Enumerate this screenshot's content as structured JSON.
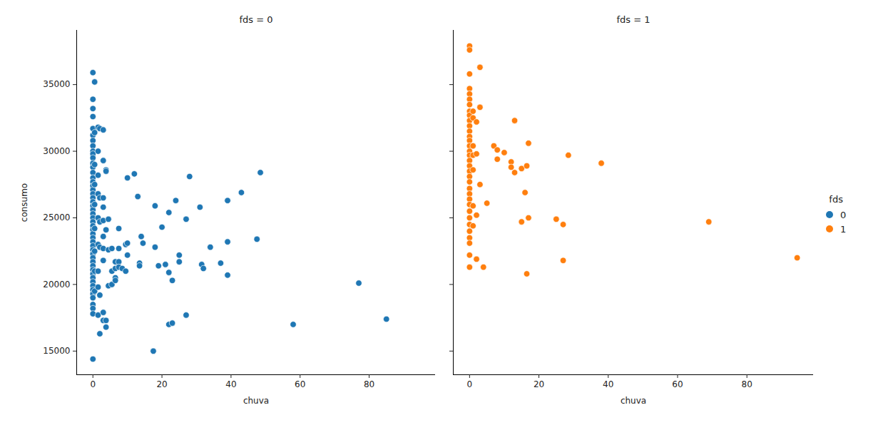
{
  "chart_data": [
    {
      "type": "scatter",
      "title": "fds = 0",
      "xlabel": "chuva",
      "ylabel": "consumo",
      "xlim": [
        -4.7,
        99.2
      ],
      "ylim": [
        13225,
        39075
      ],
      "xticks": [
        0,
        20,
        40,
        60,
        80
      ],
      "yticks": [
        15000,
        20000,
        25000,
        30000,
        35000
      ],
      "grid": false,
      "series": [
        {
          "name": "0",
          "color": "#1f77b4",
          "marker": "circle",
          "x": [
            0,
            0,
            0,
            0,
            0,
            0,
            0,
            0,
            0,
            0,
            0,
            0,
            0,
            0,
            0,
            0,
            0,
            0,
            0,
            0,
            0,
            0,
            0,
            0,
            0,
            0,
            0,
            0,
            0,
            0,
            0,
            0,
            0,
            0,
            0,
            0,
            0,
            0,
            0,
            0,
            0,
            0,
            0,
            0,
            0,
            0,
            0,
            0,
            0,
            0.5,
            0.5,
            0.5,
            0.5,
            0.5,
            0.5,
            0.5,
            0.5,
            0.5,
            1.5,
            1.5,
            1.5,
            1.5,
            1.5,
            1.5,
            1.5,
            1.5,
            1.5,
            2,
            2,
            2,
            2,
            2,
            2,
            3,
            3,
            3,
            3,
            3,
            3,
            3,
            3,
            3,
            3,
            3.8,
            3.8,
            3.8,
            3.8,
            3.8,
            4.5,
            4.5,
            4.5,
            5.5,
            5.5,
            5.5,
            6.5,
            6.5,
            6.5,
            6.5,
            7.5,
            7.5,
            7.5,
            7.5,
            8.5,
            9.5,
            9.5,
            10,
            10,
            10,
            12,
            13,
            13.5,
            13.5,
            14,
            14.5,
            17.5,
            18,
            18,
            19,
            20,
            21,
            22,
            22,
            22,
            23,
            23,
            24,
            25,
            25,
            27,
            27,
            28,
            31,
            31.5,
            32,
            34,
            37,
            39,
            39,
            39,
            43,
            47.5,
            48.5,
            58,
            77,
            85
          ],
          "values": [
            35900,
            33900,
            33200,
            32600,
            31700,
            31200,
            30800,
            30400,
            30000,
            29800,
            29500,
            29100,
            28800,
            28400,
            28000,
            27700,
            27400,
            27100,
            26800,
            26500,
            26200,
            25900,
            25600,
            25300,
            25000,
            24700,
            24400,
            24100,
            23800,
            23500,
            23200,
            22900,
            22600,
            22300,
            22000,
            21700,
            21400,
            21100,
            20800,
            20500,
            20200,
            19900,
            19600,
            19300,
            19000,
            18500,
            18200,
            17800,
            14400,
            35200,
            31400,
            29000,
            27500,
            26000,
            24200,
            22500,
            21000,
            19500,
            31800,
            30000,
            28200,
            26800,
            25000,
            23000,
            21000,
            19800,
            17700,
            31700,
            26500,
            24700,
            22800,
            19200,
            16300,
            31600,
            29300,
            26500,
            25800,
            24800,
            23600,
            22700,
            21800,
            17900,
            17300,
            28600,
            28500,
            24100,
            17300,
            16800,
            24900,
            22600,
            19900,
            22700,
            20000,
            21000,
            20500,
            21700,
            20300,
            21200,
            24200,
            22700,
            21700,
            21300,
            21200,
            23000,
            21000,
            28000,
            23100,
            22200,
            28300,
            26600,
            21600,
            21400,
            23600,
            23100,
            15000,
            25900,
            22800,
            21400,
            24300,
            21500,
            25400,
            20900,
            17000,
            20300,
            17100,
            26300,
            22200,
            21700,
            24900,
            17700,
            28100,
            25800,
            21500,
            21200,
            22800,
            21600,
            26300,
            23200,
            20700,
            26900,
            23400,
            28400,
            17000,
            20100,
            17400
          ]
        }
      ]
    },
    {
      "type": "scatter",
      "title": "fds = 1",
      "xlabel": "chuva",
      "xlim": [
        -4.7,
        99.2
      ],
      "ylim": [
        13225,
        39075
      ],
      "xticks": [
        0,
        20,
        40,
        60,
        80
      ],
      "yticks": [
        15000,
        20000,
        25000,
        30000,
        35000
      ],
      "grid": false,
      "tick_labels": "x",
      "series": [
        {
          "name": "1",
          "color": "#ff7f0e",
          "marker": "circle",
          "x": [
            0,
            0,
            0,
            0,
            0,
            0,
            0,
            0,
            0,
            0,
            0,
            0,
            0,
            0,
            0,
            0,
            0,
            0,
            0,
            0,
            0,
            0,
            0,
            0,
            0,
            0,
            0,
            0,
            0,
            0,
            0,
            0,
            0,
            0,
            1,
            1,
            1,
            1,
            1,
            1,
            1,
            2,
            2,
            2,
            2,
            3,
            3,
            3,
            4,
            5,
            7,
            8,
            8,
            10,
            12,
            12,
            13,
            13,
            15,
            15,
            16,
            16.5,
            16.5,
            17,
            17,
            25,
            27,
            27,
            28.5,
            38,
            69,
            94.5
          ],
          "values": [
            37900,
            37600,
            35800,
            34700,
            34300,
            33900,
            33500,
            33000,
            32700,
            32300,
            31900,
            31500,
            31100,
            30800,
            30400,
            30000,
            29700,
            29300,
            28900,
            28500,
            28100,
            27700,
            27200,
            26800,
            26400,
            26000,
            25500,
            25000,
            24500,
            24000,
            23500,
            23100,
            22200,
            21300,
            33000,
            32500,
            30400,
            29700,
            28600,
            25900,
            24400,
            32200,
            29800,
            25200,
            21900,
            36300,
            33300,
            27500,
            21300,
            26100,
            30400,
            29400,
            30100,
            29900,
            29200,
            28800,
            32300,
            28400,
            28700,
            24700,
            26900,
            28900,
            20800,
            30600,
            25000,
            24900,
            24500,
            21800,
            29700,
            29100,
            24700,
            22000
          ]
        }
      ]
    }
  ],
  "legend_title": "fds",
  "legend": "right"
}
